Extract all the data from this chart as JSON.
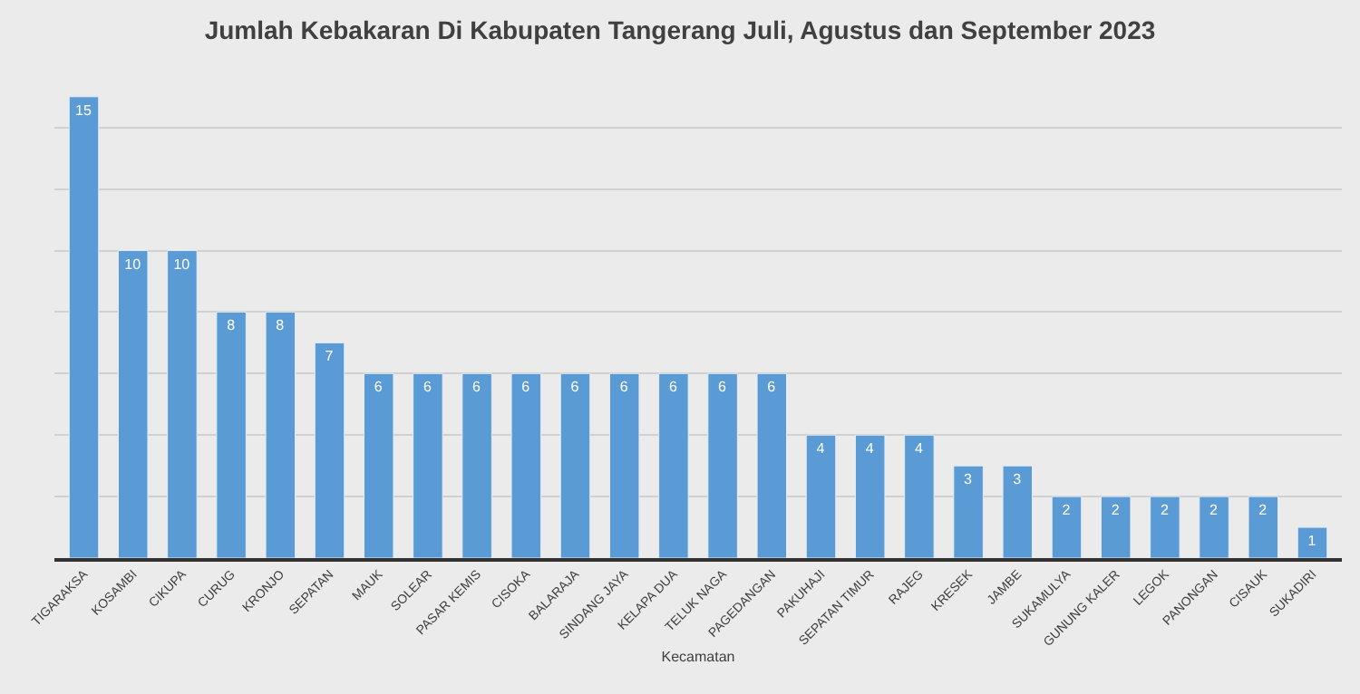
{
  "chart_data": {
    "type": "bar",
    "title": "Jumlah Kebakaran Di Kabupaten Tangerang Juli, Agustus dan September 2023",
    "xlabel": "Kecamatan",
    "categories": [
      "TIGARAKSA",
      "KOSAMBI",
      "CIKUPA",
      "CURUG",
      "KRONJO",
      "SEPATAN",
      "MAUK",
      "SOLEAR",
      "PASAR KEMIS",
      "CISOKA",
      "BALARAJA",
      "SINDANG JAYA",
      "KELAPA DUA",
      "TELUK NAGA",
      "PAGEDANGAN",
      "PAKUHAJI",
      "SEPATAN TIMUR",
      "RAJEG",
      "KRESEK",
      "JAMBE",
      "SUKAMULYA",
      "GUNUNG KALER",
      "LEGOK",
      "PANONGAN",
      "CISAUK",
      "SUKADIRI"
    ],
    "values": [
      15,
      10,
      10,
      8,
      8,
      7,
      6,
      6,
      6,
      6,
      6,
      6,
      6,
      6,
      6,
      4,
      4,
      4,
      3,
      3,
      2,
      2,
      2,
      2,
      2,
      1
    ],
    "color": "#5b9bd5",
    "data_labels": true,
    "yticks": [
      {
        "value": 0,
        "label": null
      },
      {
        "value": 2,
        "label": null
      },
      {
        "value": 4,
        "label": null
      },
      {
        "value": 6,
        "label": null
      },
      {
        "value": 8,
        "label": null
      },
      {
        "value": 10,
        "label": null
      },
      {
        "value": 12,
        "label": null
      },
      {
        "value": 14,
        "label": null
      }
    ],
    "grid": "y",
    "tick_labels": "x"
  }
}
